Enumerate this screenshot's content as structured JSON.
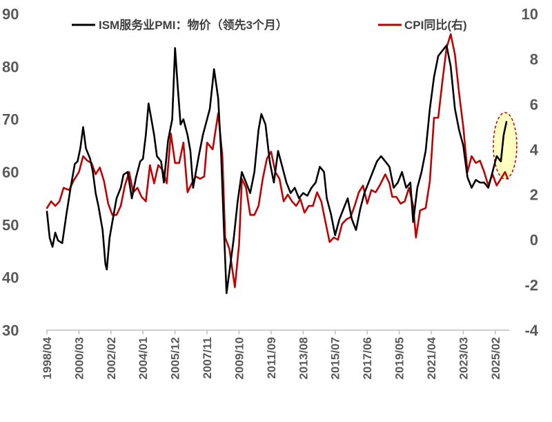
{
  "chart_data": {
    "type": "line",
    "title": "",
    "legend": {
      "placement": "top"
    },
    "axes": {
      "left": {
        "min": 30,
        "max": 90,
        "ticks": [
          "30",
          "40",
          "50",
          "60",
          "70",
          "80",
          "90"
        ]
      },
      "right": {
        "min": -4,
        "max": 10,
        "ticks": [
          "-4",
          "-2",
          "0",
          "2",
          "4",
          "6",
          "8",
          "10"
        ]
      },
      "x": {
        "start": "1998-04",
        "end": "2025-12",
        "tick_labels": [
          "1998/04",
          "2000/03",
          "2002/02",
          "2004/01",
          "2005/12",
          "2007/11",
          "2009/10",
          "2011/09",
          "2013/08",
          "2015/07",
          "2017/06",
          "2019/05",
          "2021/04",
          "2023/03",
          "2025/02"
        ]
      }
    },
    "grid": false,
    "series": [
      {
        "name": "ISM服务业PMI：物价（领先3个月）",
        "axis": "left",
        "color": "#000000",
        "points": [
          [
            "1998-04",
            52.5
          ],
          [
            "1998-06",
            47.5
          ],
          [
            "1998-08",
            45.8
          ],
          [
            "1998-10",
            48.5
          ],
          [
            "1998-12",
            47.0
          ],
          [
            "1999-03",
            46.5
          ],
          [
            "1999-06",
            52.0
          ],
          [
            "1999-09",
            57.0
          ],
          [
            "1999-12",
            61.5
          ],
          [
            "2000-02",
            62.0
          ],
          [
            "2000-04",
            64.5
          ],
          [
            "2000-06",
            68.5
          ],
          [
            "2000-08",
            64.5
          ],
          [
            "2000-11",
            62.5
          ],
          [
            "2001-01",
            60.0
          ],
          [
            "2001-03",
            56.0
          ],
          [
            "2001-05",
            53.5
          ],
          [
            "2001-08",
            49.0
          ],
          [
            "2001-10",
            42.5
          ],
          [
            "2001-11",
            41.5
          ],
          [
            "2002-01",
            47.5
          ],
          [
            "2002-03",
            50.5
          ],
          [
            "2002-06",
            55.0
          ],
          [
            "2002-09",
            57.0
          ],
          [
            "2002-11",
            59.5
          ],
          [
            "2003-02",
            60.0
          ],
          [
            "2003-05",
            55.0
          ],
          [
            "2003-08",
            59.0
          ],
          [
            "2003-11",
            62.0
          ],
          [
            "2004-01",
            62.5
          ],
          [
            "2004-03",
            67.0
          ],
          [
            "2004-05",
            73.0
          ],
          [
            "2004-07",
            70.0
          ],
          [
            "2004-09",
            67.0
          ],
          [
            "2004-11",
            63.0
          ],
          [
            "2005-02",
            62.0
          ],
          [
            "2005-04",
            58.0
          ],
          [
            "2005-07",
            66.0
          ],
          [
            "2005-10",
            70.0
          ],
          [
            "2005-12",
            83.5
          ],
          [
            "2006-02",
            76.0
          ],
          [
            "2006-04",
            69.0
          ],
          [
            "2006-06",
            70.0
          ],
          [
            "2006-09",
            67.0
          ],
          [
            "2006-11",
            64.0
          ],
          [
            "2007-01",
            57.0
          ],
          [
            "2007-03",
            60.0
          ],
          [
            "2007-05",
            63.0
          ],
          [
            "2007-08",
            67.0
          ],
          [
            "2007-10",
            69.0
          ],
          [
            "2008-01",
            72.0
          ],
          [
            "2008-04",
            79.5
          ],
          [
            "2008-07",
            74.0
          ],
          [
            "2008-09",
            64.0
          ],
          [
            "2008-11",
            50.0
          ],
          [
            "2009-01",
            37.0
          ],
          [
            "2009-03",
            41.0
          ],
          [
            "2009-06",
            47.0
          ],
          [
            "2009-09",
            54.5
          ],
          [
            "2009-12",
            60.0
          ],
          [
            "2010-03",
            58.0
          ],
          [
            "2010-06",
            56.0
          ],
          [
            "2010-09",
            60.0
          ],
          [
            "2010-12",
            68.0
          ],
          [
            "2011-02",
            71.0
          ],
          [
            "2011-05",
            69.0
          ],
          [
            "2011-08",
            62.0
          ],
          [
            "2011-11",
            58.0
          ],
          [
            "2012-02",
            64.0
          ],
          [
            "2012-05",
            61.0
          ],
          [
            "2012-08",
            58.0
          ],
          [
            "2012-11",
            56.0
          ],
          [
            "2013-02",
            57.0
          ],
          [
            "2013-05",
            55.0
          ],
          [
            "2013-08",
            56.0
          ],
          [
            "2013-11",
            55.5
          ],
          [
            "2014-02",
            57.0
          ],
          [
            "2014-05",
            58.0
          ],
          [
            "2014-08",
            61.0
          ],
          [
            "2014-11",
            60.0
          ],
          [
            "2015-01",
            55.0
          ],
          [
            "2015-04",
            52.0
          ],
          [
            "2015-07",
            48.0
          ],
          [
            "2015-10",
            51.0
          ],
          [
            "2016-01",
            53.0
          ],
          [
            "2016-04",
            55.0
          ],
          [
            "2016-07",
            51.0
          ],
          [
            "2016-10",
            49.0
          ],
          [
            "2017-01",
            53.0
          ],
          [
            "2017-04",
            56.0
          ],
          [
            "2017-07",
            58.0
          ],
          [
            "2017-10",
            60.0
          ],
          [
            "2018-01",
            62.0
          ],
          [
            "2018-04",
            63.0
          ],
          [
            "2018-07",
            62.0
          ],
          [
            "2018-10",
            61.0
          ],
          [
            "2019-01",
            57.0
          ],
          [
            "2019-04",
            58.0
          ],
          [
            "2019-07",
            60.0
          ],
          [
            "2019-10",
            57.0
          ],
          [
            "2020-01",
            58.0
          ],
          [
            "2020-03",
            50.5
          ],
          [
            "2020-06",
            57.0
          ],
          [
            "2020-09",
            60.0
          ],
          [
            "2020-12",
            64.0
          ],
          [
            "2021-03",
            72.0
          ],
          [
            "2021-06",
            78.0
          ],
          [
            "2021-09",
            82.0
          ],
          [
            "2021-12",
            83.0
          ],
          [
            "2022-03",
            84.0
          ],
          [
            "2022-06",
            80.0
          ],
          [
            "2022-09",
            72.0
          ],
          [
            "2022-12",
            68.0
          ],
          [
            "2023-03",
            65.0
          ],
          [
            "2023-06",
            59.0
          ],
          [
            "2023-09",
            57.0
          ],
          [
            "2023-12",
            58.5
          ],
          [
            "2024-03",
            58.0
          ],
          [
            "2024-06",
            58.0
          ],
          [
            "2024-09",
            57.0
          ],
          [
            "2024-12",
            60.0
          ],
          [
            "2025-03",
            63.0
          ],
          [
            "2025-06",
            62.0
          ],
          [
            "2025-08",
            67.0
          ],
          [
            "2025-10",
            69.5
          ]
        ]
      },
      {
        "name": "CPI同比(右)",
        "axis": "right",
        "color": "#c00000",
        "points": [
          [
            "1998-04",
            1.4
          ],
          [
            "1998-07",
            1.7
          ],
          [
            "1998-10",
            1.5
          ],
          [
            "1999-01",
            1.7
          ],
          [
            "1999-04",
            2.3
          ],
          [
            "1999-08",
            2.2
          ],
          [
            "1999-11",
            2.6
          ],
          [
            "2000-03",
            3.0
          ],
          [
            "2000-06",
            3.7
          ],
          [
            "2000-09",
            3.5
          ],
          [
            "2000-12",
            3.4
          ],
          [
            "2001-03",
            2.9
          ],
          [
            "2001-06",
            3.2
          ],
          [
            "2001-09",
            2.6
          ],
          [
            "2001-12",
            1.6
          ],
          [
            "2002-03",
            1.1
          ],
          [
            "2002-06",
            1.1
          ],
          [
            "2002-09",
            1.5
          ],
          [
            "2002-12",
            2.4
          ],
          [
            "2003-03",
            3.0
          ],
          [
            "2003-06",
            2.1
          ],
          [
            "2003-09",
            2.3
          ],
          [
            "2003-12",
            1.9
          ],
          [
            "2004-03",
            1.7
          ],
          [
            "2004-06",
            3.3
          ],
          [
            "2004-09",
            2.5
          ],
          [
            "2004-12",
            3.3
          ],
          [
            "2005-03",
            3.1
          ],
          [
            "2005-06",
            2.5
          ],
          [
            "2005-09",
            4.7
          ],
          [
            "2005-12",
            3.4
          ],
          [
            "2006-03",
            3.4
          ],
          [
            "2006-06",
            4.3
          ],
          [
            "2006-09",
            2.1
          ],
          [
            "2006-12",
            2.5
          ],
          [
            "2007-03",
            2.8
          ],
          [
            "2007-06",
            2.7
          ],
          [
            "2007-09",
            2.8
          ],
          [
            "2007-11",
            4.3
          ],
          [
            "2008-03",
            4.0
          ],
          [
            "2008-07",
            5.6
          ],
          [
            "2008-10",
            3.7
          ],
          [
            "2008-12",
            0.1
          ],
          [
            "2009-03",
            -0.4
          ],
          [
            "2009-07",
            -2.1
          ],
          [
            "2009-10",
            -0.2
          ],
          [
            "2009-12",
            2.7
          ],
          [
            "2010-03",
            2.3
          ],
          [
            "2010-06",
            1.1
          ],
          [
            "2010-09",
            1.1
          ],
          [
            "2010-12",
            1.5
          ],
          [
            "2011-03",
            2.7
          ],
          [
            "2011-06",
            3.6
          ],
          [
            "2011-09",
            3.9
          ],
          [
            "2011-12",
            3.0
          ],
          [
            "2012-03",
            2.7
          ],
          [
            "2012-06",
            1.7
          ],
          [
            "2012-09",
            2.0
          ],
          [
            "2012-12",
            1.7
          ],
          [
            "2013-03",
            1.5
          ],
          [
            "2013-06",
            1.8
          ],
          [
            "2013-09",
            1.2
          ],
          [
            "2013-12",
            1.5
          ],
          [
            "2014-03",
            1.5
          ],
          [
            "2014-06",
            2.1
          ],
          [
            "2014-09",
            1.7
          ],
          [
            "2014-12",
            0.8
          ],
          [
            "2015-03",
            -0.1
          ],
          [
            "2015-06",
            0.1
          ],
          [
            "2015-09",
            0.0
          ],
          [
            "2015-12",
            0.7
          ],
          [
            "2016-03",
            0.9
          ],
          [
            "2016-06",
            1.0
          ],
          [
            "2016-09",
            1.5
          ],
          [
            "2016-12",
            2.1
          ],
          [
            "2017-03",
            2.4
          ],
          [
            "2017-06",
            1.6
          ],
          [
            "2017-09",
            2.2
          ],
          [
            "2017-12",
            2.1
          ],
          [
            "2018-03",
            2.4
          ],
          [
            "2018-07",
            2.9
          ],
          [
            "2018-10",
            2.5
          ],
          [
            "2018-12",
            1.9
          ],
          [
            "2019-03",
            1.9
          ],
          [
            "2019-06",
            1.6
          ],
          [
            "2019-09",
            1.7
          ],
          [
            "2019-12",
            2.3
          ],
          [
            "2020-03",
            1.5
          ],
          [
            "2020-05",
            0.1
          ],
          [
            "2020-08",
            1.3
          ],
          [
            "2020-12",
            1.4
          ],
          [
            "2021-03",
            2.6
          ],
          [
            "2021-06",
            5.4
          ],
          [
            "2021-09",
            5.4
          ],
          [
            "2021-12",
            7.0
          ],
          [
            "2022-03",
            8.5
          ],
          [
            "2022-06",
            9.1
          ],
          [
            "2022-09",
            8.2
          ],
          [
            "2022-12",
            6.5
          ],
          [
            "2023-03",
            5.0
          ],
          [
            "2023-06",
            3.0
          ],
          [
            "2023-09",
            3.7
          ],
          [
            "2023-12",
            3.4
          ],
          [
            "2024-03",
            3.5
          ],
          [
            "2024-06",
            3.0
          ],
          [
            "2024-09",
            2.4
          ],
          [
            "2024-12",
            2.9
          ],
          [
            "2025-03",
            2.4
          ],
          [
            "2025-06",
            2.7
          ],
          [
            "2025-09",
            3.0
          ],
          [
            "2025-11",
            2.7
          ]
        ]
      }
    ],
    "annotation": {
      "type": "ellipse-highlight",
      "x": "2025-09",
      "fill": "#ffffc0",
      "stroke": "#c00000"
    }
  }
}
